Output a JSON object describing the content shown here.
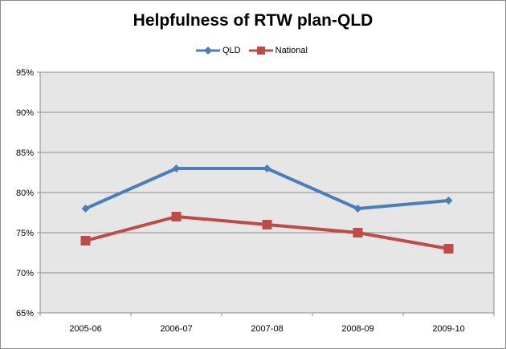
{
  "chart_data": {
    "type": "line",
    "title": "Helpfulness of RTW plan-QLD",
    "xlabel": "",
    "ylabel": "",
    "categories": [
      "2005-06",
      "2006-07",
      "2007-08",
      "2008-09",
      "2009-10"
    ],
    "series": [
      {
        "name": "QLD",
        "values": [
          78,
          83,
          83,
          78,
          79
        ],
        "color": "#4a7ebb",
        "marker": "diamond"
      },
      {
        "name": "National",
        "values": [
          74,
          77,
          76,
          75,
          73
        ],
        "color": "#be4b48",
        "marker": "square"
      }
    ],
    "ylim": [
      65,
      95
    ],
    "yticks": [
      "65%",
      "70%",
      "75%",
      "80%",
      "85%",
      "90%",
      "95%"
    ],
    "grid": true,
    "legend_position": "top",
    "plot_background": "#e6e6e6"
  }
}
